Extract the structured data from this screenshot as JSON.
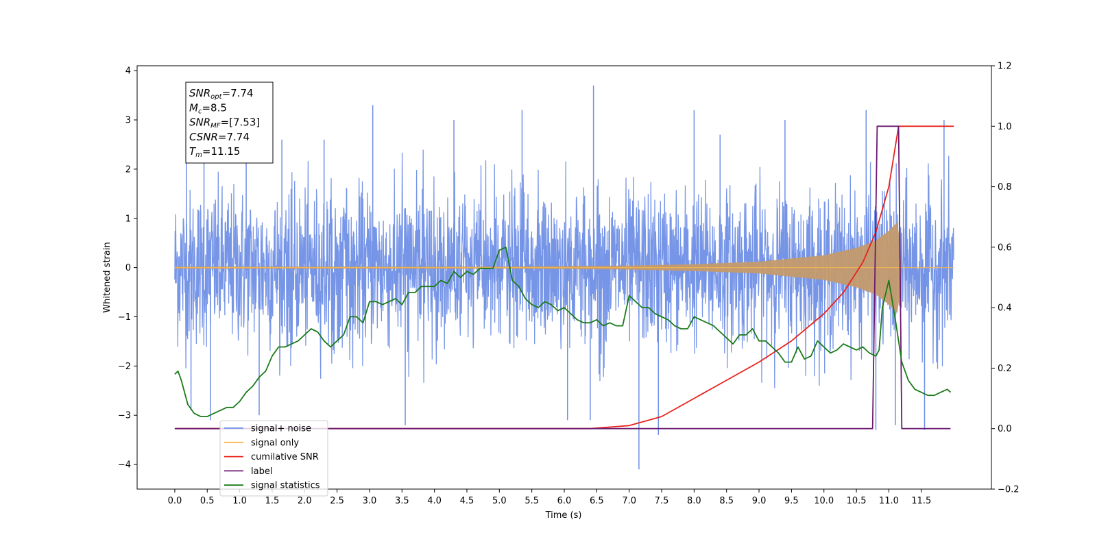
{
  "chart_data": {
    "type": "line",
    "title": "",
    "xlabel": "Time (s)",
    "ylabel": "Whitened strain",
    "xlim": [
      -0.58,
      12.58
    ],
    "ylim": [
      -4.5,
      4.1
    ],
    "y2lim": [
      -0.2,
      1.2
    ],
    "x_ticks": [
      0.0,
      0.5,
      1.0,
      1.5,
      2.0,
      2.5,
      3.0,
      3.5,
      4.0,
      4.5,
      5.0,
      5.5,
      6.0,
      6.5,
      7.0,
      7.5,
      8.0,
      8.5,
      9.0,
      9.5,
      10.0,
      10.5,
      11.0,
      11.5
    ],
    "x_tick_labels": [
      "0.0",
      "0.5",
      "1.0",
      "1.5",
      "2.0",
      "2.5",
      "3.0",
      "3.5",
      "4.0",
      "4.5",
      "5.0",
      "5.5",
      "6.0",
      "6.5",
      "7.0",
      "7.5",
      "8.0",
      "8.5",
      "9.0",
      "9.5",
      "10.0",
      "10.5",
      "11.0",
      "11.5"
    ],
    "y_ticks": [
      -4,
      -3,
      -2,
      -1,
      0,
      1,
      2,
      3,
      4
    ],
    "y_tick_labels": [
      "−4",
      "−3",
      "−2",
      "−1",
      "0",
      "1",
      "2",
      "3",
      "4"
    ],
    "y2_ticks": [
      -0.2,
      0.0,
      0.2,
      0.4,
      0.6,
      0.8,
      1.0,
      1.2
    ],
    "y2_tick_labels": [
      "−0.2",
      "0.0",
      "0.2",
      "0.4",
      "0.6",
      "0.8",
      "1.0",
      "1.2"
    ],
    "legend_placement": "lower-left",
    "grid": false,
    "series": [
      {
        "name": "signal+ noise",
        "axis": "left",
        "color": "#6f8fe6",
        "x_range": [
          0.0,
          12.0
        ],
        "band": [
          -1.9,
          1.9
        ],
        "spike_max": [
          [
            0.18,
            3.0
          ],
          [
            0.45,
            2.8
          ],
          [
            1.1,
            2.7
          ],
          [
            1.65,
            2.6
          ],
          [
            2.3,
            2.6
          ],
          [
            3.05,
            3.3
          ],
          [
            4.3,
            3.0
          ],
          [
            5.35,
            3.2
          ],
          [
            6.45,
            3.7
          ],
          [
            8.0,
            3.2
          ],
          [
            8.4,
            2.7
          ],
          [
            9.4,
            3.0
          ],
          [
            10.65,
            3.2
          ],
          [
            11.85,
            3.0
          ]
        ],
        "spike_min": [
          [
            0.25,
            -2.9
          ],
          [
            0.55,
            -3.1
          ],
          [
            1.3,
            -3.0
          ],
          [
            3.55,
            -3.2
          ],
          [
            6.05,
            -3.1
          ],
          [
            6.4,
            -3.1
          ],
          [
            7.15,
            -4.1
          ],
          [
            7.45,
            -3.4
          ],
          [
            10.8,
            -3.3
          ],
          [
            11.1,
            -3.2
          ],
          [
            11.55,
            -3.3
          ]
        ]
      },
      {
        "name": "signal only",
        "axis": "left",
        "color": "#f5b84e",
        "x_range": [
          0.0,
          12.0
        ],
        "envelope": [
          [
            0.0,
            0.02
          ],
          [
            5.0,
            0.02
          ],
          [
            7.0,
            0.04
          ],
          [
            8.0,
            0.07
          ],
          [
            9.0,
            0.12
          ],
          [
            10.0,
            0.25
          ],
          [
            10.5,
            0.4
          ],
          [
            10.8,
            0.55
          ],
          [
            11.0,
            0.75
          ],
          [
            11.15,
            0.95
          ],
          [
            11.18,
            0.0
          ],
          [
            12.0,
            0.0
          ]
        ]
      },
      {
        "name": "cumilative SNR",
        "axis": "right",
        "color": "#e8221b",
        "x": [
          0.0,
          6.4,
          7.0,
          7.5,
          8.0,
          8.5,
          9.0,
          9.5,
          10.0,
          10.3,
          10.6,
          10.8,
          11.0,
          11.15,
          11.17,
          12.0
        ],
        "values": [
          0.0,
          0.0,
          0.01,
          0.04,
          0.1,
          0.16,
          0.22,
          0.29,
          0.38,
          0.45,
          0.55,
          0.65,
          0.8,
          1.0,
          1.0,
          1.0
        ]
      },
      {
        "name": "label",
        "axis": "right",
        "color": "#6b1a70",
        "x": [
          0.0,
          10.75,
          10.82,
          11.15,
          11.2,
          11.95
        ],
        "values": [
          0.0,
          0.0,
          1.0,
          1.0,
          0.0,
          0.0
        ]
      },
      {
        "name": "signal statistics",
        "axis": "right",
        "color": "#1a7a1a",
        "x": [
          0.0,
          0.05,
          0.1,
          0.2,
          0.3,
          0.4,
          0.5,
          0.6,
          0.7,
          0.8,
          0.9,
          1.0,
          1.1,
          1.2,
          1.3,
          1.4,
          1.5,
          1.6,
          1.7,
          1.8,
          1.9,
          2.0,
          2.1,
          2.2,
          2.3,
          2.4,
          2.5,
          2.6,
          2.7,
          2.8,
          2.9,
          3.0,
          3.1,
          3.2,
          3.3,
          3.4,
          3.5,
          3.6,
          3.7,
          3.8,
          3.9,
          4.0,
          4.1,
          4.2,
          4.3,
          4.4,
          4.5,
          4.6,
          4.7,
          4.8,
          4.9,
          5.0,
          5.1,
          5.2,
          5.3,
          5.4,
          5.5,
          5.6,
          5.7,
          5.8,
          5.9,
          6.0,
          6.1,
          6.2,
          6.3,
          6.4,
          6.5,
          6.6,
          6.7,
          6.8,
          6.9,
          7.0,
          7.1,
          7.2,
          7.3,
          7.4,
          7.5,
          7.6,
          7.7,
          7.8,
          7.9,
          8.0,
          8.1,
          8.2,
          8.3,
          8.4,
          8.5,
          8.6,
          8.7,
          8.8,
          8.9,
          9.0,
          9.1,
          9.2,
          9.3,
          9.4,
          9.5,
          9.6,
          9.7,
          9.8,
          9.9,
          10.0,
          10.1,
          10.2,
          10.3,
          10.4,
          10.5,
          10.6,
          10.7,
          10.8,
          10.85,
          10.9,
          11.0,
          11.1,
          11.2,
          11.3,
          11.4,
          11.5,
          11.6,
          11.7,
          11.8,
          11.9,
          11.95
        ],
        "values": [
          0.18,
          0.19,
          0.16,
          0.08,
          0.05,
          0.04,
          0.04,
          0.05,
          0.06,
          0.07,
          0.07,
          0.09,
          0.12,
          0.14,
          0.17,
          0.19,
          0.24,
          0.27,
          0.27,
          0.28,
          0.29,
          0.31,
          0.33,
          0.32,
          0.29,
          0.27,
          0.29,
          0.31,
          0.37,
          0.37,
          0.35,
          0.42,
          0.42,
          0.41,
          0.42,
          0.43,
          0.41,
          0.45,
          0.45,
          0.47,
          0.47,
          0.47,
          0.49,
          0.48,
          0.52,
          0.5,
          0.52,
          0.51,
          0.53,
          0.53,
          0.53,
          0.59,
          0.6,
          0.49,
          0.47,
          0.43,
          0.41,
          0.4,
          0.42,
          0.41,
          0.39,
          0.4,
          0.38,
          0.36,
          0.35,
          0.35,
          0.36,
          0.34,
          0.35,
          0.34,
          0.34,
          0.44,
          0.42,
          0.4,
          0.4,
          0.38,
          0.37,
          0.36,
          0.34,
          0.33,
          0.33,
          0.37,
          0.36,
          0.35,
          0.34,
          0.32,
          0.3,
          0.28,
          0.31,
          0.31,
          0.33,
          0.29,
          0.29,
          0.27,
          0.25,
          0.22,
          0.22,
          0.27,
          0.23,
          0.24,
          0.29,
          0.27,
          0.25,
          0.26,
          0.28,
          0.27,
          0.26,
          0.27,
          0.25,
          0.24,
          0.26,
          0.4,
          0.49,
          0.36,
          0.22,
          0.16,
          0.13,
          0.12,
          0.11,
          0.11,
          0.12,
          0.13,
          0.12
        ]
      }
    ],
    "legend": [
      {
        "label": "signal+ noise",
        "color": "#6f8fe6"
      },
      {
        "label": "signal only",
        "color": "#f5b84e"
      },
      {
        "label": "cumilative SNR",
        "color": "#e8221b"
      },
      {
        "label": "label",
        "color": "#6b1a70"
      },
      {
        "label": "signal statistics",
        "color": "#1a7a1a"
      }
    ],
    "annotation": {
      "lines": [
        {
          "main": "SNR",
          "sub": "opt",
          "value": "=7.74"
        },
        {
          "main": "M",
          "sub": "c",
          "value": "=8.5"
        },
        {
          "main": "SNR",
          "sub": "MF",
          "value": "=[7.53]"
        },
        {
          "main": "CSNR",
          "sub": "",
          "value": "=7.74"
        },
        {
          "main": "T",
          "sub": "m",
          "value": "=11.15"
        }
      ]
    }
  }
}
